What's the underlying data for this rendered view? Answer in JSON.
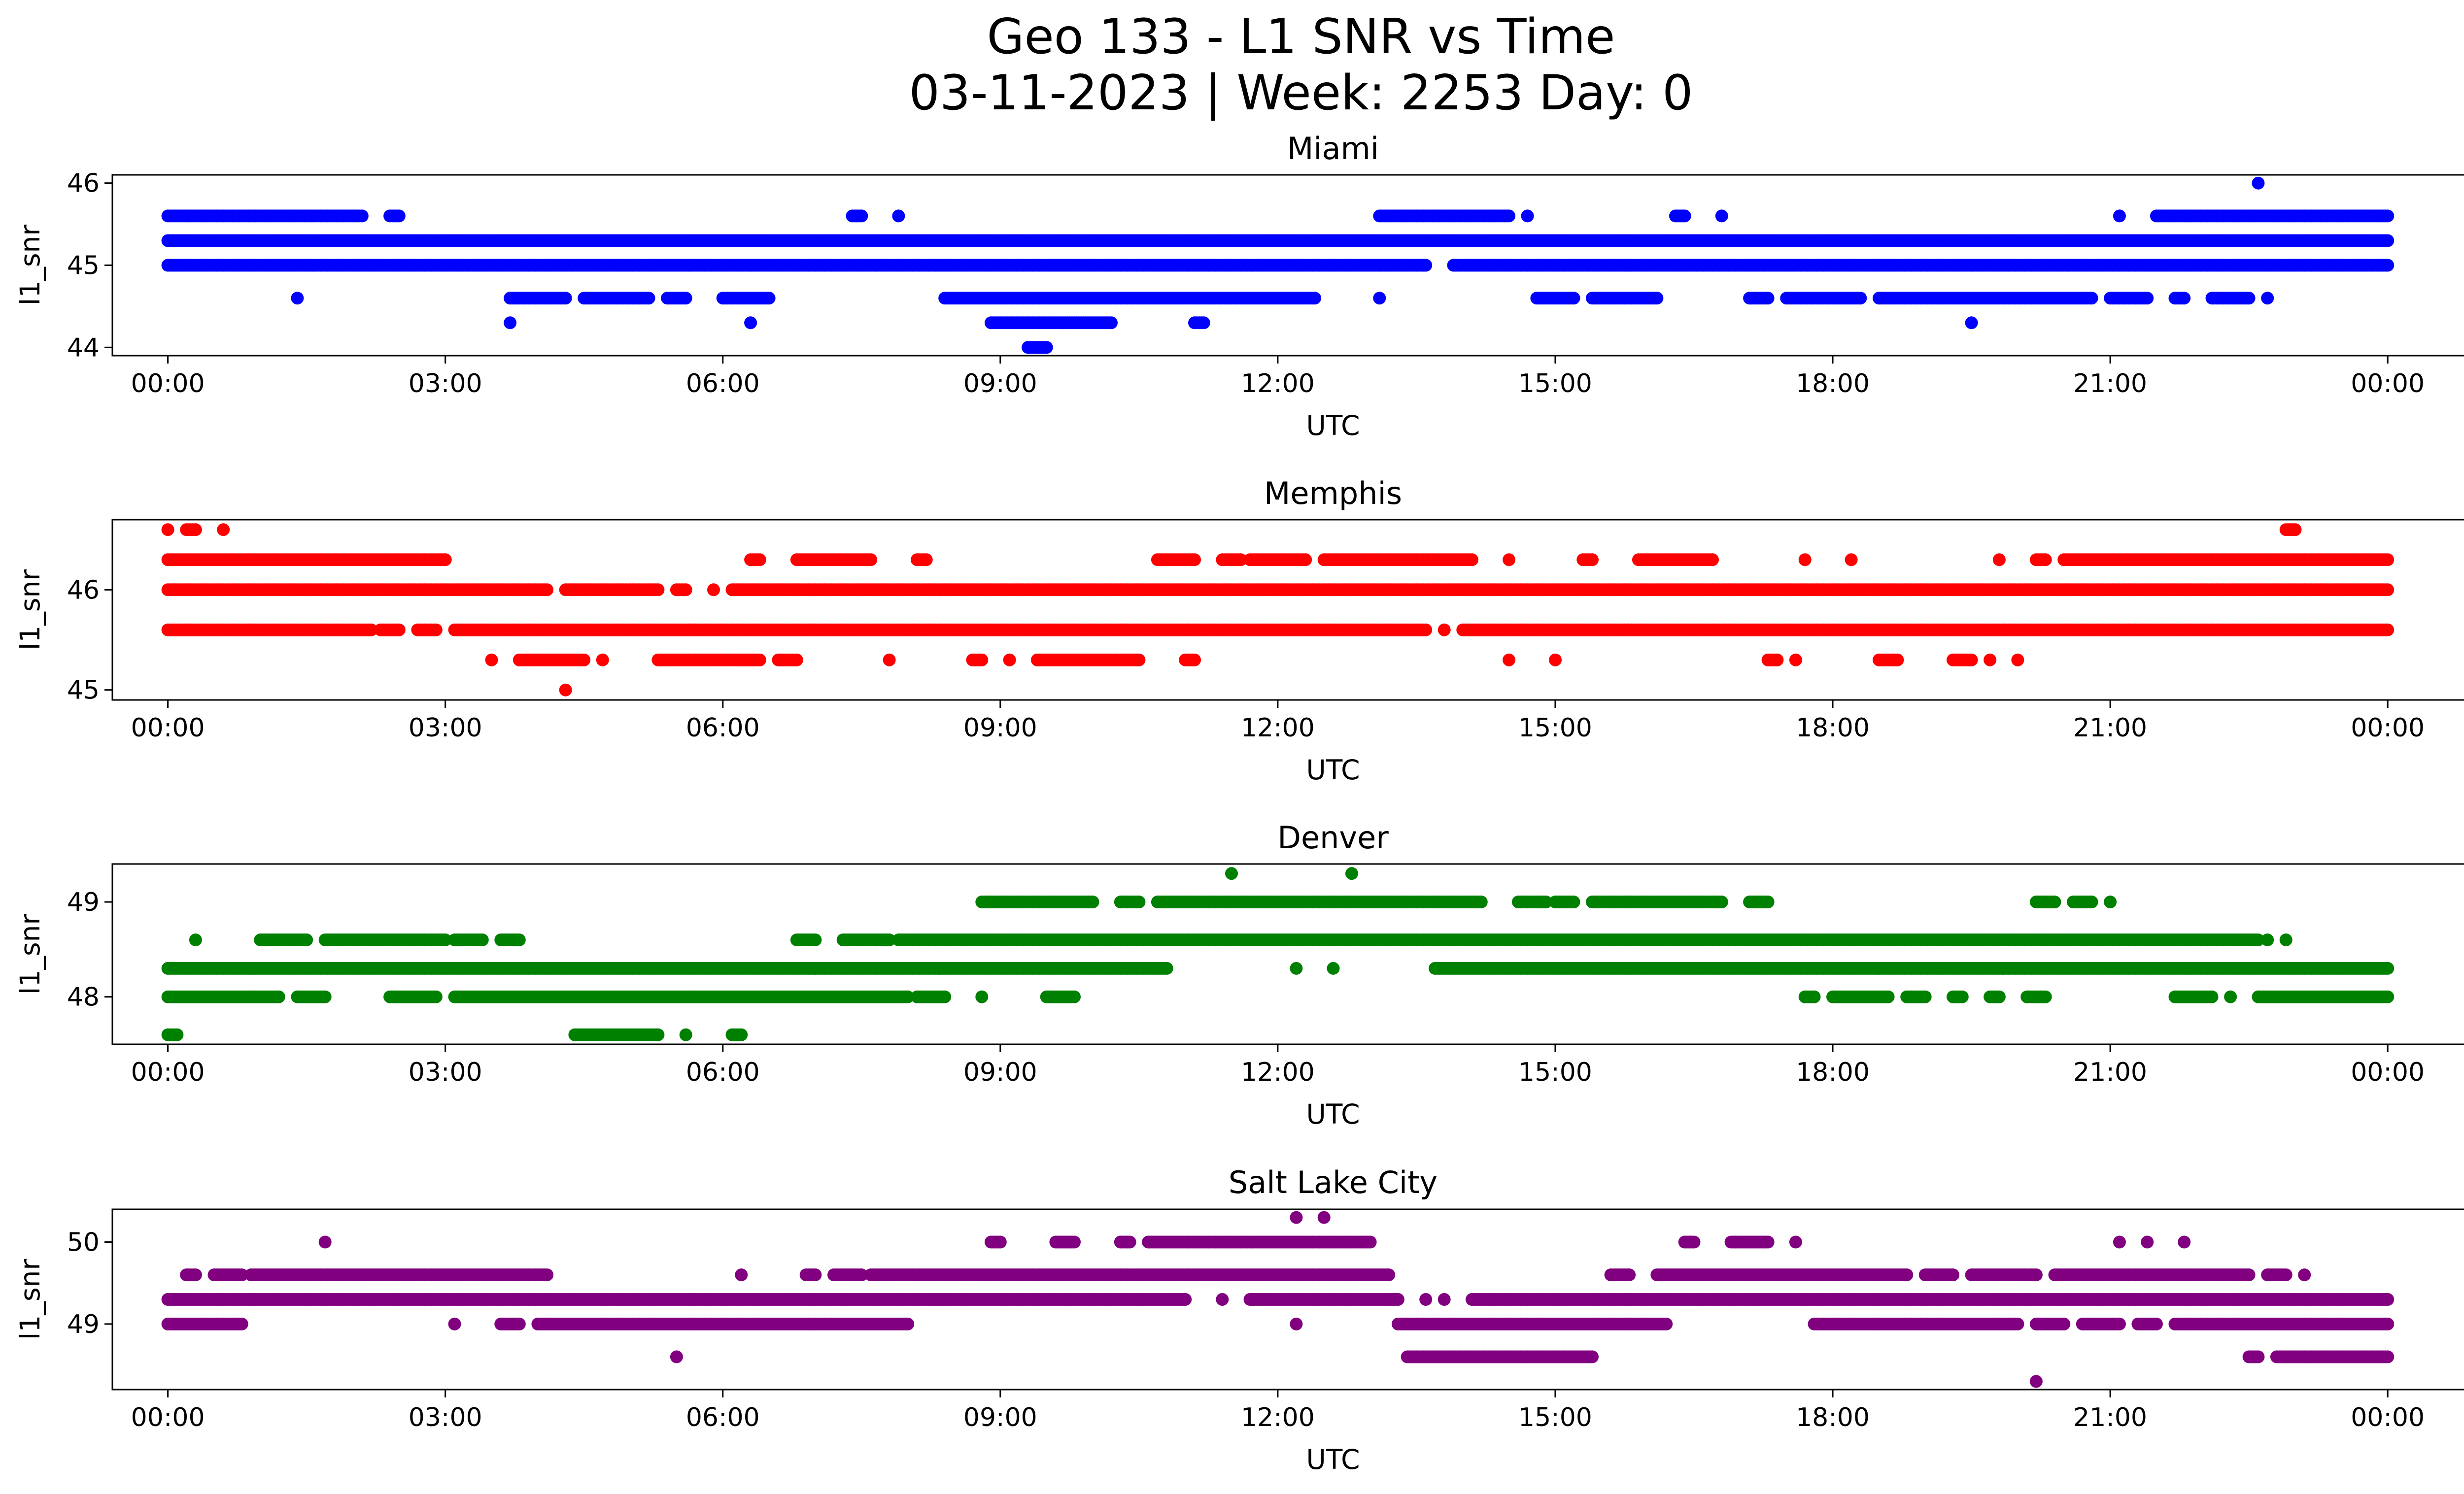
{
  "figure": {
    "title_line1": "Geo 133 - L1 SNR vs Time",
    "title_line2": "03-11-2023 | Week: 2253 Day: 0"
  },
  "chart_data": [
    {
      "type": "scatter",
      "title": "Miami",
      "xlabel": "UTC",
      "ylabel": "l1_snr",
      "color": "#0000ff",
      "xlim": [
        -0.6,
        25.8
      ],
      "xticks": [
        "00:00",
        "03:00",
        "06:00",
        "09:00",
        "12:00",
        "15:00",
        "18:00",
        "21:00",
        "00:00"
      ],
      "ylim": [
        43.9,
        46.1
      ],
      "yticks": [
        44,
        45,
        46
      ],
      "series": [
        {
          "y": 45.3,
          "x_ranges": [
            [
              0.0,
              8.3
            ],
            [
              8.3,
              24.0
            ]
          ]
        },
        {
          "y": 45.0,
          "x_ranges": [
            [
              0.0,
              13.6
            ],
            [
              13.9,
              24.0
            ]
          ]
        },
        {
          "y": 45.6,
          "x_ranges": [
            [
              0.0,
              2.1
            ],
            [
              2.4,
              2.5
            ],
            [
              7.4,
              7.5
            ],
            [
              7.9,
              7.9
            ],
            [
              13.1,
              14.5
            ],
            [
              14.7,
              14.7
            ],
            [
              16.3,
              16.4
            ],
            [
              16.8,
              16.8
            ],
            [
              21.1,
              21.1
            ],
            [
              21.5,
              24.0
            ]
          ]
        },
        {
          "y": 44.6,
          "x_ranges": [
            [
              1.4,
              1.4
            ],
            [
              3.7,
              4.3
            ],
            [
              4.5,
              5.2
            ],
            [
              5.4,
              5.6
            ],
            [
              6.0,
              6.5
            ],
            [
              8.4,
              12.4
            ],
            [
              13.1,
              13.1
            ],
            [
              14.8,
              15.2
            ],
            [
              15.4,
              16.1
            ],
            [
              17.1,
              17.3
            ],
            [
              17.5,
              18.3
            ],
            [
              18.5,
              20.8
            ],
            [
              21.0,
              21.4
            ],
            [
              21.7,
              21.8
            ],
            [
              22.1,
              22.5
            ],
            [
              22.7,
              22.7
            ]
          ]
        },
        {
          "y": 44.3,
          "x_ranges": [
            [
              3.7,
              3.7
            ],
            [
              6.3,
              6.3
            ],
            [
              8.9,
              10.2
            ],
            [
              11.1,
              11.2
            ],
            [
              19.5,
              19.5
            ]
          ]
        },
        {
          "y": 44.0,
          "x_ranges": [
            [
              9.3,
              9.5
            ]
          ]
        },
        {
          "y": 46.0,
          "x_ranges": [
            [
              22.6,
              22.6
            ]
          ]
        }
      ]
    },
    {
      "type": "scatter",
      "title": "Memphis",
      "xlabel": "UTC",
      "ylabel": "l1_snr",
      "color": "#ff0000",
      "xlim": [
        -0.6,
        25.8
      ],
      "xticks": [
        "00:00",
        "03:00",
        "06:00",
        "09:00",
        "12:00",
        "15:00",
        "18:00",
        "21:00",
        "00:00"
      ],
      "ylim": [
        44.9,
        46.7
      ],
      "yticks": [
        45,
        46
      ],
      "series": [
        {
          "y": 46.0,
          "x_ranges": [
            [
              0.0,
              4.1
            ],
            [
              4.3,
              5.3
            ],
            [
              5.5,
              5.6
            ],
            [
              5.9,
              5.9
            ],
            [
              6.1,
              24.0
            ]
          ]
        },
        {
          "y": 45.6,
          "x_ranges": [
            [
              0.0,
              2.2
            ],
            [
              2.3,
              2.5
            ],
            [
              2.7,
              2.9
            ],
            [
              3.1,
              13.6
            ],
            [
              13.8,
              13.8
            ],
            [
              14.0,
              24.0
            ]
          ]
        },
        {
          "y": 46.3,
          "x_ranges": [
            [
              0.0,
              3.0
            ],
            [
              6.3,
              6.4
            ],
            [
              6.8,
              7.6
            ],
            [
              8.1,
              8.2
            ],
            [
              10.7,
              11.1
            ],
            [
              11.4,
              11.6
            ],
            [
              11.7,
              12.3
            ],
            [
              12.5,
              14.1
            ],
            [
              14.5,
              14.5
            ],
            [
              15.3,
              15.4
            ],
            [
              15.9,
              16.7
            ],
            [
              17.7,
              17.7
            ],
            [
              18.2,
              18.2
            ],
            [
              19.8,
              19.8
            ],
            [
              20.2,
              20.3
            ],
            [
              20.5,
              24.0
            ]
          ]
        },
        {
          "y": 46.6,
          "x_ranges": [
            [
              0.0,
              0.0
            ],
            [
              0.2,
              0.3
            ],
            [
              0.6,
              0.6
            ],
            [
              22.9,
              23.0
            ]
          ]
        },
        {
          "y": 45.3,
          "x_ranges": [
            [
              3.5,
              3.5
            ],
            [
              3.8,
              4.5
            ],
            [
              4.7,
              4.7
            ],
            [
              5.3,
              6.4
            ],
            [
              6.6,
              6.8
            ],
            [
              7.8,
              7.8
            ],
            [
              8.7,
              8.8
            ],
            [
              9.1,
              9.1
            ],
            [
              9.4,
              10.5
            ],
            [
              11.0,
              11.1
            ],
            [
              14.5,
              14.5
            ],
            [
              15.0,
              15.0
            ],
            [
              17.3,
              17.4
            ],
            [
              17.6,
              17.6
            ],
            [
              18.5,
              18.7
            ],
            [
              19.3,
              19.5
            ],
            [
              19.7,
              19.7
            ],
            [
              20.0,
              20.0
            ]
          ]
        },
        {
          "y": 45.0,
          "x_ranges": [
            [
              4.3,
              4.3
            ]
          ]
        }
      ]
    },
    {
      "type": "scatter",
      "title": "Denver",
      "xlabel": "UTC",
      "ylabel": "l1_snr",
      "color": "#008000",
      "xlim": [
        -0.6,
        25.8
      ],
      "xticks": [
        "00:00",
        "03:00",
        "06:00",
        "09:00",
        "12:00",
        "15:00",
        "18:00",
        "21:00",
        "00:00"
      ],
      "ylim": [
        47.5,
        49.4
      ],
      "yticks": [
        48,
        49
      ],
      "series": [
        {
          "y": 48.3,
          "x_ranges": [
            [
              0.0,
              10.8
            ],
            [
              12.2,
              12.2
            ],
            [
              12.6,
              12.6
            ],
            [
              13.7,
              24.0
            ]
          ]
        },
        {
          "y": 48.0,
          "x_ranges": [
            [
              0.0,
              1.2
            ],
            [
              1.4,
              1.7
            ],
            [
              2.4,
              2.9
            ],
            [
              3.1,
              8.0
            ],
            [
              8.1,
              8.4
            ],
            [
              8.8,
              8.8
            ],
            [
              9.5,
              9.8
            ],
            [
              17.7,
              17.8
            ],
            [
              18.0,
              18.6
            ],
            [
              18.8,
              19.0
            ],
            [
              19.3,
              19.4
            ],
            [
              19.7,
              19.8
            ],
            [
              20.1,
              20.3
            ],
            [
              21.7,
              22.1
            ],
            [
              22.3,
              22.3
            ],
            [
              22.6,
              24.0
            ]
          ]
        },
        {
          "y": 48.6,
          "x_ranges": [
            [
              0.3,
              0.3
            ],
            [
              1.0,
              1.5
            ],
            [
              1.7,
              3.0
            ],
            [
              3.1,
              3.4
            ],
            [
              3.6,
              3.8
            ],
            [
              6.8,
              7.0
            ],
            [
              7.3,
              7.8
            ],
            [
              7.9,
              22.6
            ],
            [
              22.7,
              22.7
            ],
            [
              22.9,
              22.9
            ]
          ]
        },
        {
          "y": 49.0,
          "x_ranges": [
            [
              8.8,
              10.0
            ],
            [
              10.3,
              10.5
            ],
            [
              10.7,
              14.2
            ],
            [
              14.6,
              14.9
            ],
            [
              15.0,
              15.2
            ],
            [
              15.4,
              16.8
            ],
            [
              17.1,
              17.3
            ],
            [
              20.2,
              20.4
            ],
            [
              20.6,
              20.8
            ],
            [
              21.0,
              21.0
            ]
          ]
        },
        {
          "y": 49.3,
          "x_ranges": [
            [
              11.5,
              11.5
            ],
            [
              12.8,
              12.8
            ]
          ]
        },
        {
          "y": 47.6,
          "x_ranges": [
            [
              0.0,
              0.1
            ],
            [
              4.4,
              5.3
            ],
            [
              5.6,
              5.6
            ],
            [
              6.1,
              6.2
            ]
          ]
        }
      ]
    },
    {
      "type": "scatter",
      "title": "Salt Lake City",
      "xlabel": "UTC",
      "ylabel": "l1_snr",
      "color": "#800080",
      "xlim": [
        -0.6,
        25.8
      ],
      "xticks": [
        "00:00",
        "03:00",
        "06:00",
        "09:00",
        "12:00",
        "15:00",
        "18:00",
        "21:00",
        "00:00"
      ],
      "ylim": [
        48.2,
        50.4
      ],
      "yticks": [
        49,
        50
      ],
      "series": [
        {
          "y": 49.3,
          "x_ranges": [
            [
              0.0,
              11.0
            ],
            [
              11.4,
              11.4
            ],
            [
              11.7,
              13.3
            ],
            [
              13.6,
              13.6
            ],
            [
              13.8,
              13.8
            ],
            [
              14.1,
              24.0
            ]
          ]
        },
        {
          "y": 49.0,
          "x_ranges": [
            [
              0.0,
              0.8
            ],
            [
              3.1,
              3.1
            ],
            [
              3.6,
              3.8
            ],
            [
              4.0,
              8.0
            ],
            [
              12.2,
              12.2
            ],
            [
              13.3,
              16.2
            ],
            [
              17.8,
              20.0
            ],
            [
              20.2,
              20.5
            ],
            [
              20.7,
              21.1
            ],
            [
              21.3,
              21.5
            ],
            [
              21.7,
              24.0
            ]
          ]
        },
        {
          "y": 49.6,
          "x_ranges": [
            [
              0.2,
              0.3
            ],
            [
              0.5,
              0.8
            ],
            [
              0.9,
              4.1
            ],
            [
              6.2,
              6.2
            ],
            [
              6.9,
              7.0
            ],
            [
              7.2,
              7.5
            ],
            [
              7.6,
              13.2
            ],
            [
              15.6,
              15.8
            ],
            [
              16.1,
              18.8
            ],
            [
              19.0,
              19.3
            ],
            [
              19.5,
              20.2
            ],
            [
              20.4,
              22.5
            ],
            [
              22.7,
              22.9
            ],
            [
              23.1,
              23.1
            ]
          ]
        },
        {
          "y": 50.0,
          "x_ranges": [
            [
              1.7,
              1.7
            ],
            [
              8.9,
              9.0
            ],
            [
              9.6,
              9.8
            ],
            [
              10.3,
              10.4
            ],
            [
              10.6,
              13.0
            ],
            [
              16.4,
              16.5
            ],
            [
              16.9,
              17.3
            ],
            [
              17.6,
              17.6
            ],
            [
              21.1,
              21.1
            ],
            [
              21.4,
              21.4
            ],
            [
              21.8,
              21.8
            ]
          ]
        },
        {
          "y": 48.6,
          "x_ranges": [
            [
              5.5,
              5.5
            ],
            [
              13.4,
              15.4
            ],
            [
              22.5,
              22.6
            ],
            [
              22.8,
              24.0
            ]
          ]
        },
        {
          "y": 50.3,
          "x_ranges": [
            [
              12.2,
              12.2
            ],
            [
              12.5,
              12.5
            ]
          ]
        },
        {
          "y": 48.3,
          "x_ranges": [
            [
              20.2,
              20.2
            ]
          ]
        }
      ]
    }
  ]
}
